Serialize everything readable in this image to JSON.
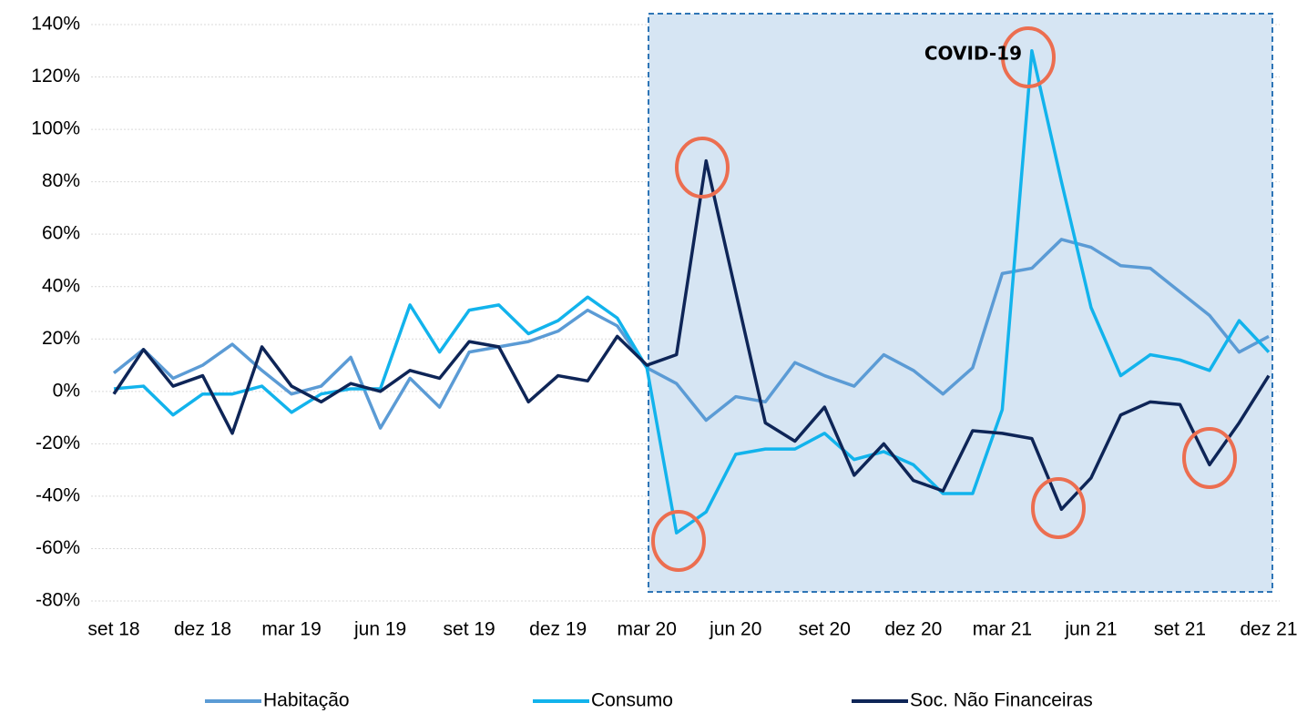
{
  "chart_data": {
    "type": "line",
    "annotations": [
      "COVID-19"
    ],
    "categories": [
      "set 18",
      null,
      null,
      "dez 18",
      null,
      null,
      "mar 19",
      null,
      null,
      "jun 19",
      null,
      null,
      "set 19",
      null,
      null,
      "dez 19",
      null,
      null,
      "mar 20",
      null,
      null,
      "jun 20",
      null,
      null,
      "set 20",
      null,
      null,
      "dez 20",
      null,
      null,
      "mar 21",
      null,
      null,
      "jun 21",
      null,
      null,
      "set 21",
      null,
      null,
      "dez 21"
    ],
    "series": [
      {
        "name": "Habitação",
        "color": "#5b9bd5",
        "values": [
          7,
          16,
          5,
          10,
          18,
          8,
          -1,
          2,
          13,
          -14,
          5,
          -6,
          15,
          17,
          19,
          23,
          31,
          25,
          9,
          3,
          -11,
          -2,
          -4,
          11,
          6,
          2,
          14,
          8,
          -1,
          9,
          45,
          47,
          58,
          55,
          48,
          47,
          38,
          29,
          15,
          21
        ]
      },
      {
        "name": "Consumo",
        "color": "#12b3ec",
        "values": [
          1,
          2,
          -9,
          -1,
          -1,
          2,
          -8,
          -1,
          1,
          1,
          33,
          15,
          31,
          33,
          22,
          27,
          36,
          28,
          9,
          -54,
          -46,
          -24,
          -22,
          -22,
          -16,
          -26,
          -23,
          -28,
          -39,
          -39,
          -7,
          130,
          80,
          32,
          6,
          14,
          12,
          8,
          27,
          15
        ]
      },
      {
        "name": "Soc. Não Financeiras",
        "color": "#0e2557",
        "values": [
          -1,
          16,
          2,
          6,
          -16,
          17,
          2,
          -4,
          3,
          0,
          8,
          5,
          19,
          17,
          -4,
          6,
          4,
          21,
          10,
          14,
          88,
          38,
          -12,
          -19,
          -6,
          -32,
          -20,
          -34,
          -38,
          -15,
          -16,
          -18,
          -45,
          -33,
          -9,
          -4,
          -5,
          -28,
          -12,
          6
        ]
      }
    ],
    "ylim": [
      -80,
      140
    ],
    "yticks": [
      {
        "value": -80,
        "label": "-80%"
      },
      {
        "value": -60,
        "label": "-60%"
      },
      {
        "value": -40,
        "label": "-40%"
      },
      {
        "value": -20,
        "label": "-20%"
      },
      {
        "value": 0,
        "label": "0%"
      },
      {
        "value": 20,
        "label": "20%"
      },
      {
        "value": 40,
        "label": "40%"
      },
      {
        "value": 60,
        "label": "60%"
      },
      {
        "value": 80,
        "label": "80%"
      },
      {
        "value": 100,
        "label": "100%"
      },
      {
        "value": 120,
        "label": "120%"
      },
      {
        "value": 140,
        "label": "140%"
      }
    ],
    "grid": true,
    "legend": "bottom"
  }
}
